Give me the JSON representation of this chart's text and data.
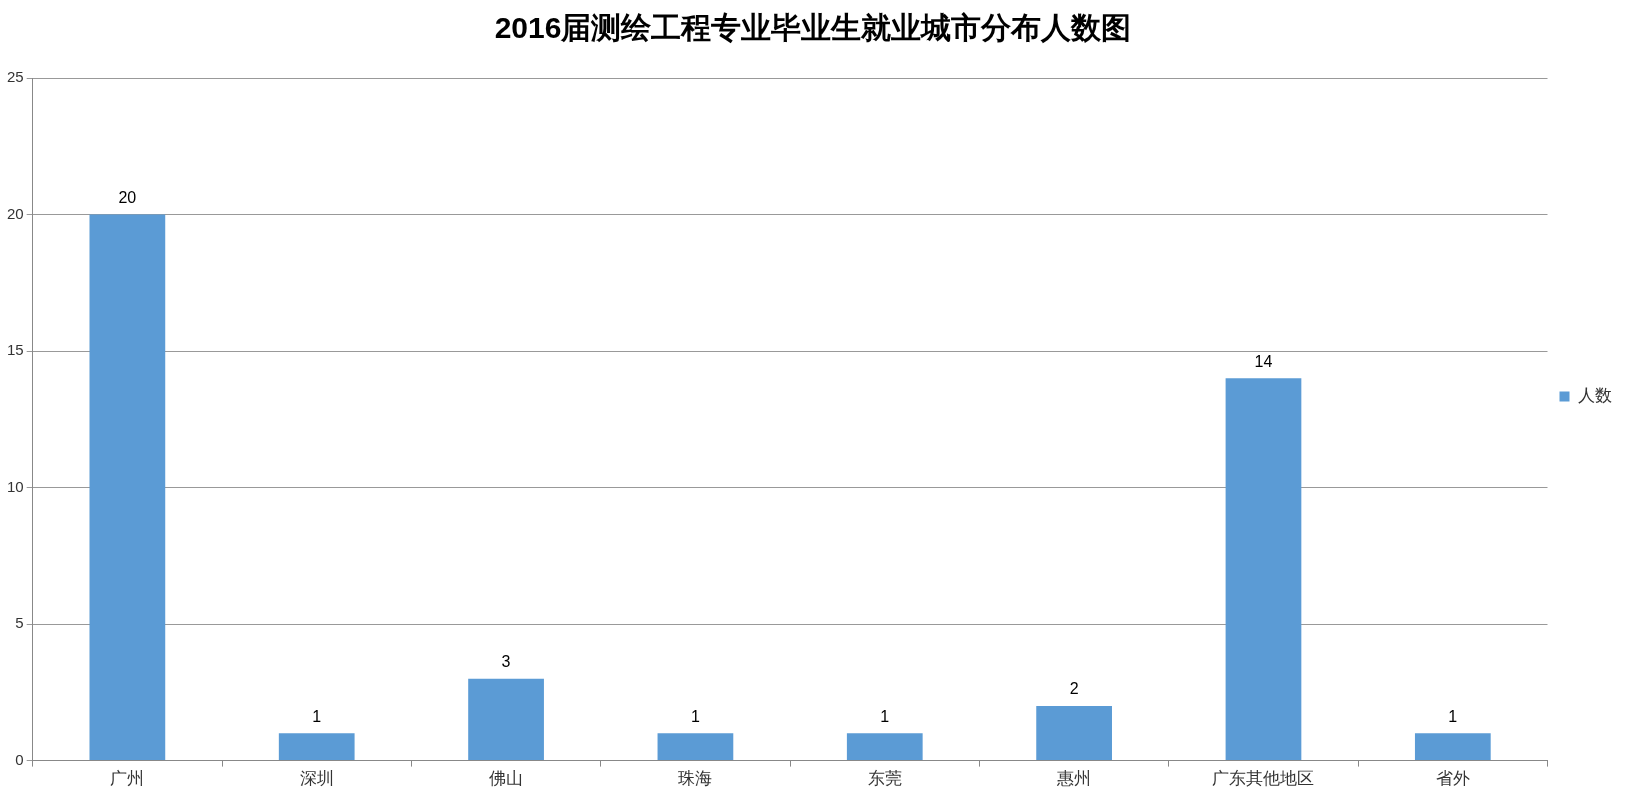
{
  "chart_data": {
    "type": "bar",
    "title": "2016届测绘工程专业毕业生就业城市分布人数图",
    "categories": [
      "广州",
      "深圳",
      "佛山",
      "珠海",
      "东莞",
      "惠州",
      "广东其他地区",
      "省外"
    ],
    "series": [
      {
        "name": "人数",
        "color": "#5b9bd5",
        "values": [
          20,
          1,
          3,
          1,
          1,
          2,
          14,
          1
        ]
      }
    ],
    "ylim": [
      0,
      25
    ],
    "yticks": [
      0,
      5,
      10,
      15,
      20,
      25
    ],
    "grid": "y",
    "legend": "right",
    "data_labels": true
  }
}
